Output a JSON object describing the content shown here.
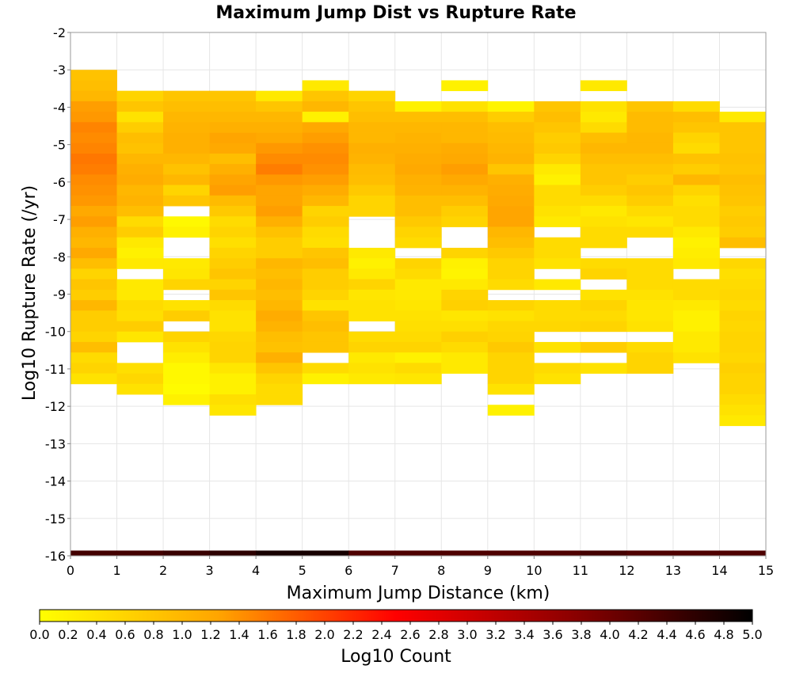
{
  "chart_data": {
    "type": "heatmap",
    "title": "Maximum Jump Dist vs Rupture Rate",
    "xlabel": "Maximum Jump Distance (km)",
    "ylabel": "Log10 Rupture Rate (/yr)",
    "xlim": [
      0,
      15
    ],
    "ylim": [
      -16,
      -2
    ],
    "x_ticks": [
      "0",
      "1",
      "2",
      "3",
      "4",
      "5",
      "6",
      "7",
      "8",
      "9",
      "10",
      "11",
      "12",
      "13",
      "14",
      "15"
    ],
    "y_ticks": [
      "-2",
      "-3",
      "-4",
      "-5",
      "-6",
      "-7",
      "-8",
      "-9",
      "-10",
      "-11",
      "-12",
      "-13",
      "-14",
      "-15",
      "-16"
    ],
    "grid": true,
    "x_bin_width": 1,
    "y_bin_height": 0.28,
    "colorbar": {
      "label": "Log10 Count",
      "range": [
        0,
        5
      ],
      "ticks": [
        "0.0",
        "0.2",
        "0.4",
        "0.6",
        "0.8",
        "1.0",
        "1.2",
        "1.4",
        "1.6",
        "1.8",
        "2.0",
        "2.2",
        "2.4",
        "2.6",
        "2.8",
        "3.0",
        "3.2",
        "3.4",
        "3.6",
        "3.8",
        "4.0",
        "4.2",
        "4.4",
        "4.6",
        "4.8",
        "5.0"
      ],
      "colors": [
        "#ffff00",
        "#ffa500",
        "#ff0000",
        "#8b0000",
        "#000000"
      ]
    },
    "columns": [
      {
        "x": 0,
        "y_top": -3.0,
        "values": [
          0.85,
          0.9,
          1.0,
          1.3,
          1.35,
          1.5,
          1.45,
          1.5,
          1.6,
          1.55,
          1.45,
          1.4,
          1.35,
          1.2,
          1.3,
          1.1,
          1.0,
          1.2,
          0.9,
          0.6,
          0.8,
          0.7,
          1.0,
          0.7,
          0.7,
          0.6,
          0.9,
          0.5,
          0.6,
          0.4
        ]
      },
      {
        "x": 1,
        "y_top": -3.56,
        "values": [
          0.6,
          0.8,
          0.4,
          0.7,
          0.9,
          0.85,
          1.0,
          1.1,
          1.15,
          1.0,
          1.05,
          0.9,
          0.5,
          0.7,
          0.3,
          0.2,
          0.3,
          null,
          0.3,
          0.3,
          0.5,
          0.45,
          0.7,
          0.35,
          null,
          null,
          0.45,
          0.55,
          0.4
        ]
      },
      {
        "x": 2,
        "y_top": -3.56,
        "values": [
          0.8,
          0.9,
          1.0,
          1.05,
          1.1,
          1.1,
          1.0,
          0.85,
          1.0,
          0.6,
          0.8,
          null,
          0.1,
          0.2,
          null,
          null,
          0.3,
          0.35,
          0.6,
          null,
          0.4,
          0.7,
          null,
          0.6,
          0.4,
          0.25,
          0.1,
          0.1,
          0.05,
          0.2
        ]
      },
      {
        "x": 3,
        "y_top": -3.56,
        "values": [
          0.8,
          0.9,
          1.0,
          1.1,
          1.25,
          1.2,
          0.9,
          1.1,
          1.25,
          1.3,
          0.95,
          0.75,
          0.5,
          0.6,
          0.45,
          0.6,
          0.7,
          0.8,
          0.6,
          0.8,
          0.5,
          0.4,
          0.4,
          0.55,
          0.6,
          0.6,
          0.35,
          0.2,
          0.2,
          0.45,
          0.35
        ]
      },
      {
        "x": 4,
        "y_top": -3.56,
        "values": [
          0.3,
          0.8,
          1.0,
          1.1,
          1.2,
          1.35,
          1.45,
          1.55,
          1.35,
          1.25,
          1.25,
          1.3,
          1.1,
          0.85,
          0.7,
          0.7,
          1.0,
          0.9,
          1.0,
          0.9,
          1.0,
          1.15,
          1.05,
          0.9,
          0.85,
          1.1,
          0.8,
          0.6,
          0.5,
          0.5
        ]
      },
      {
        "x": 5,
        "y_top": -3.28,
        "values": [
          0.3,
          0.8,
          1.0,
          0.2,
          1.2,
          1.3,
          1.4,
          1.45,
          1.4,
          1.3,
          1.15,
          1.0,
          0.6,
          0.7,
          0.5,
          0.45,
          0.8,
          0.9,
          0.7,
          0.7,
          0.6,
          0.4,
          0.8,
          0.9,
          0.8,
          0.8,
          null,
          0.5,
          0.2
        ]
      },
      {
        "x": 6,
        "y_top": -3.56,
        "values": [
          0.6,
          0.8,
          0.9,
          1.0,
          1.0,
          1.1,
          1.05,
          0.95,
          0.9,
          0.75,
          0.6,
          0.6,
          null,
          null,
          null,
          0.3,
          0.2,
          0.3,
          0.6,
          0.35,
          0.4,
          0.4,
          null,
          0.5,
          0.6,
          0.3,
          0.4,
          0.3
        ]
      },
      {
        "x": 7,
        "y_top": -3.84,
        "values": [
          0.2,
          0.9,
          1.0,
          1.05,
          1.1,
          1.15,
          1.2,
          1.1,
          1.05,
          0.9,
          0.9,
          0.75,
          0.6,
          0.5,
          null,
          0.6,
          0.5,
          0.3,
          0.3,
          0.35,
          0.4,
          0.45,
          0.5,
          0.6,
          0.2,
          0.5,
          0.35
        ]
      },
      {
        "x": 8,
        "y_top": -3.28,
        "values": [
          0.2,
          null,
          0.4,
          0.9,
          1.0,
          1.0,
          1.15,
          1.2,
          1.3,
          1.2,
          1.05,
          0.9,
          0.7,
          0.6,
          null,
          null,
          0.6,
          0.2,
          0.15,
          0.3,
          0.6,
          0.65,
          0.35,
          0.45,
          0.65,
          0.5,
          0.3,
          0.3
        ]
      },
      {
        "x": 9,
        "y_top": -3.84,
        "values": [
          0.15,
          0.7,
          0.9,
          0.95,
          1.0,
          1.05,
          0.8,
          1.1,
          1.15,
          1.2,
          1.25,
          1.25,
          1.0,
          0.9,
          0.75,
          0.6,
          0.6,
          0.5,
          null,
          0.6,
          0.4,
          0.55,
          0.6,
          0.75,
          0.6,
          0.6,
          0.6,
          0.4,
          null,
          0.2
        ]
      },
      {
        "x": 10,
        "y_top": -3.84,
        "values": [
          0.8,
          0.9,
          0.8,
          0.7,
          0.75,
          0.6,
          0.3,
          0.2,
          0.5,
          0.5,
          0.4,
          0.3,
          null,
          0.5,
          0.5,
          0.4,
          null,
          0.3,
          null,
          0.5,
          0.5,
          0.55,
          null,
          0.4,
          null,
          0.5,
          0.4
        ]
      },
      {
        "x": 11,
        "y_top": -3.28,
        "values": [
          0.3,
          null,
          0.4,
          0.3,
          0.5,
          0.9,
          1.0,
          0.9,
          0.8,
          0.8,
          0.7,
          0.5,
          0.3,
          0.4,
          0.5,
          0.5,
          null,
          0.5,
          0.6,
          null,
          0.4,
          0.6,
          0.5,
          0.6,
          null,
          0.7,
          null,
          0.4
        ]
      },
      {
        "x": 12,
        "y_top": -3.84,
        "values": [
          0.8,
          0.95,
          0.95,
          1.0,
          1.0,
          0.9,
          0.8,
          0.7,
          0.8,
          0.7,
          0.5,
          0.35,
          0.5,
          null,
          null,
          0.5,
          0.5,
          0.5,
          0.4,
          0.35,
          0.35,
          0.4,
          null,
          0.5,
          0.6,
          0.6
        ]
      },
      {
        "x": 13,
        "y_top": -3.84,
        "values": [
          0.5,
          0.9,
          0.8,
          0.6,
          0.5,
          0.85,
          0.7,
          1.0,
          0.6,
          0.45,
          0.5,
          0.5,
          0.3,
          0.2,
          0.25,
          0.3,
          null,
          0.5,
          0.5,
          0.3,
          0.2,
          0.2,
          0.3,
          0.3,
          0.4
        ]
      },
      {
        "x": 14,
        "y_top": -4.12,
        "values": [
          0.3,
          0.8,
          0.8,
          0.8,
          0.85,
          0.8,
          0.9,
          0.85,
          0.8,
          0.7,
          0.75,
          0.7,
          0.9,
          null,
          0.55,
          0.45,
          0.5,
          0.55,
          0.5,
          0.6,
          0.55,
          0.6,
          0.6,
          0.55,
          0.65,
          0.6,
          0.6,
          0.5,
          0.4,
          0.3
        ]
      }
    ],
    "base_row": {
      "y_bottom": -16,
      "y_top": -15.86,
      "values": [
        4.4,
        4.4,
        4.5,
        4.6,
        4.8,
        4.8,
        4.3,
        4.3,
        4.3,
        4.3,
        4.3,
        4.4,
        4.3,
        4.3,
        4.3
      ]
    }
  }
}
